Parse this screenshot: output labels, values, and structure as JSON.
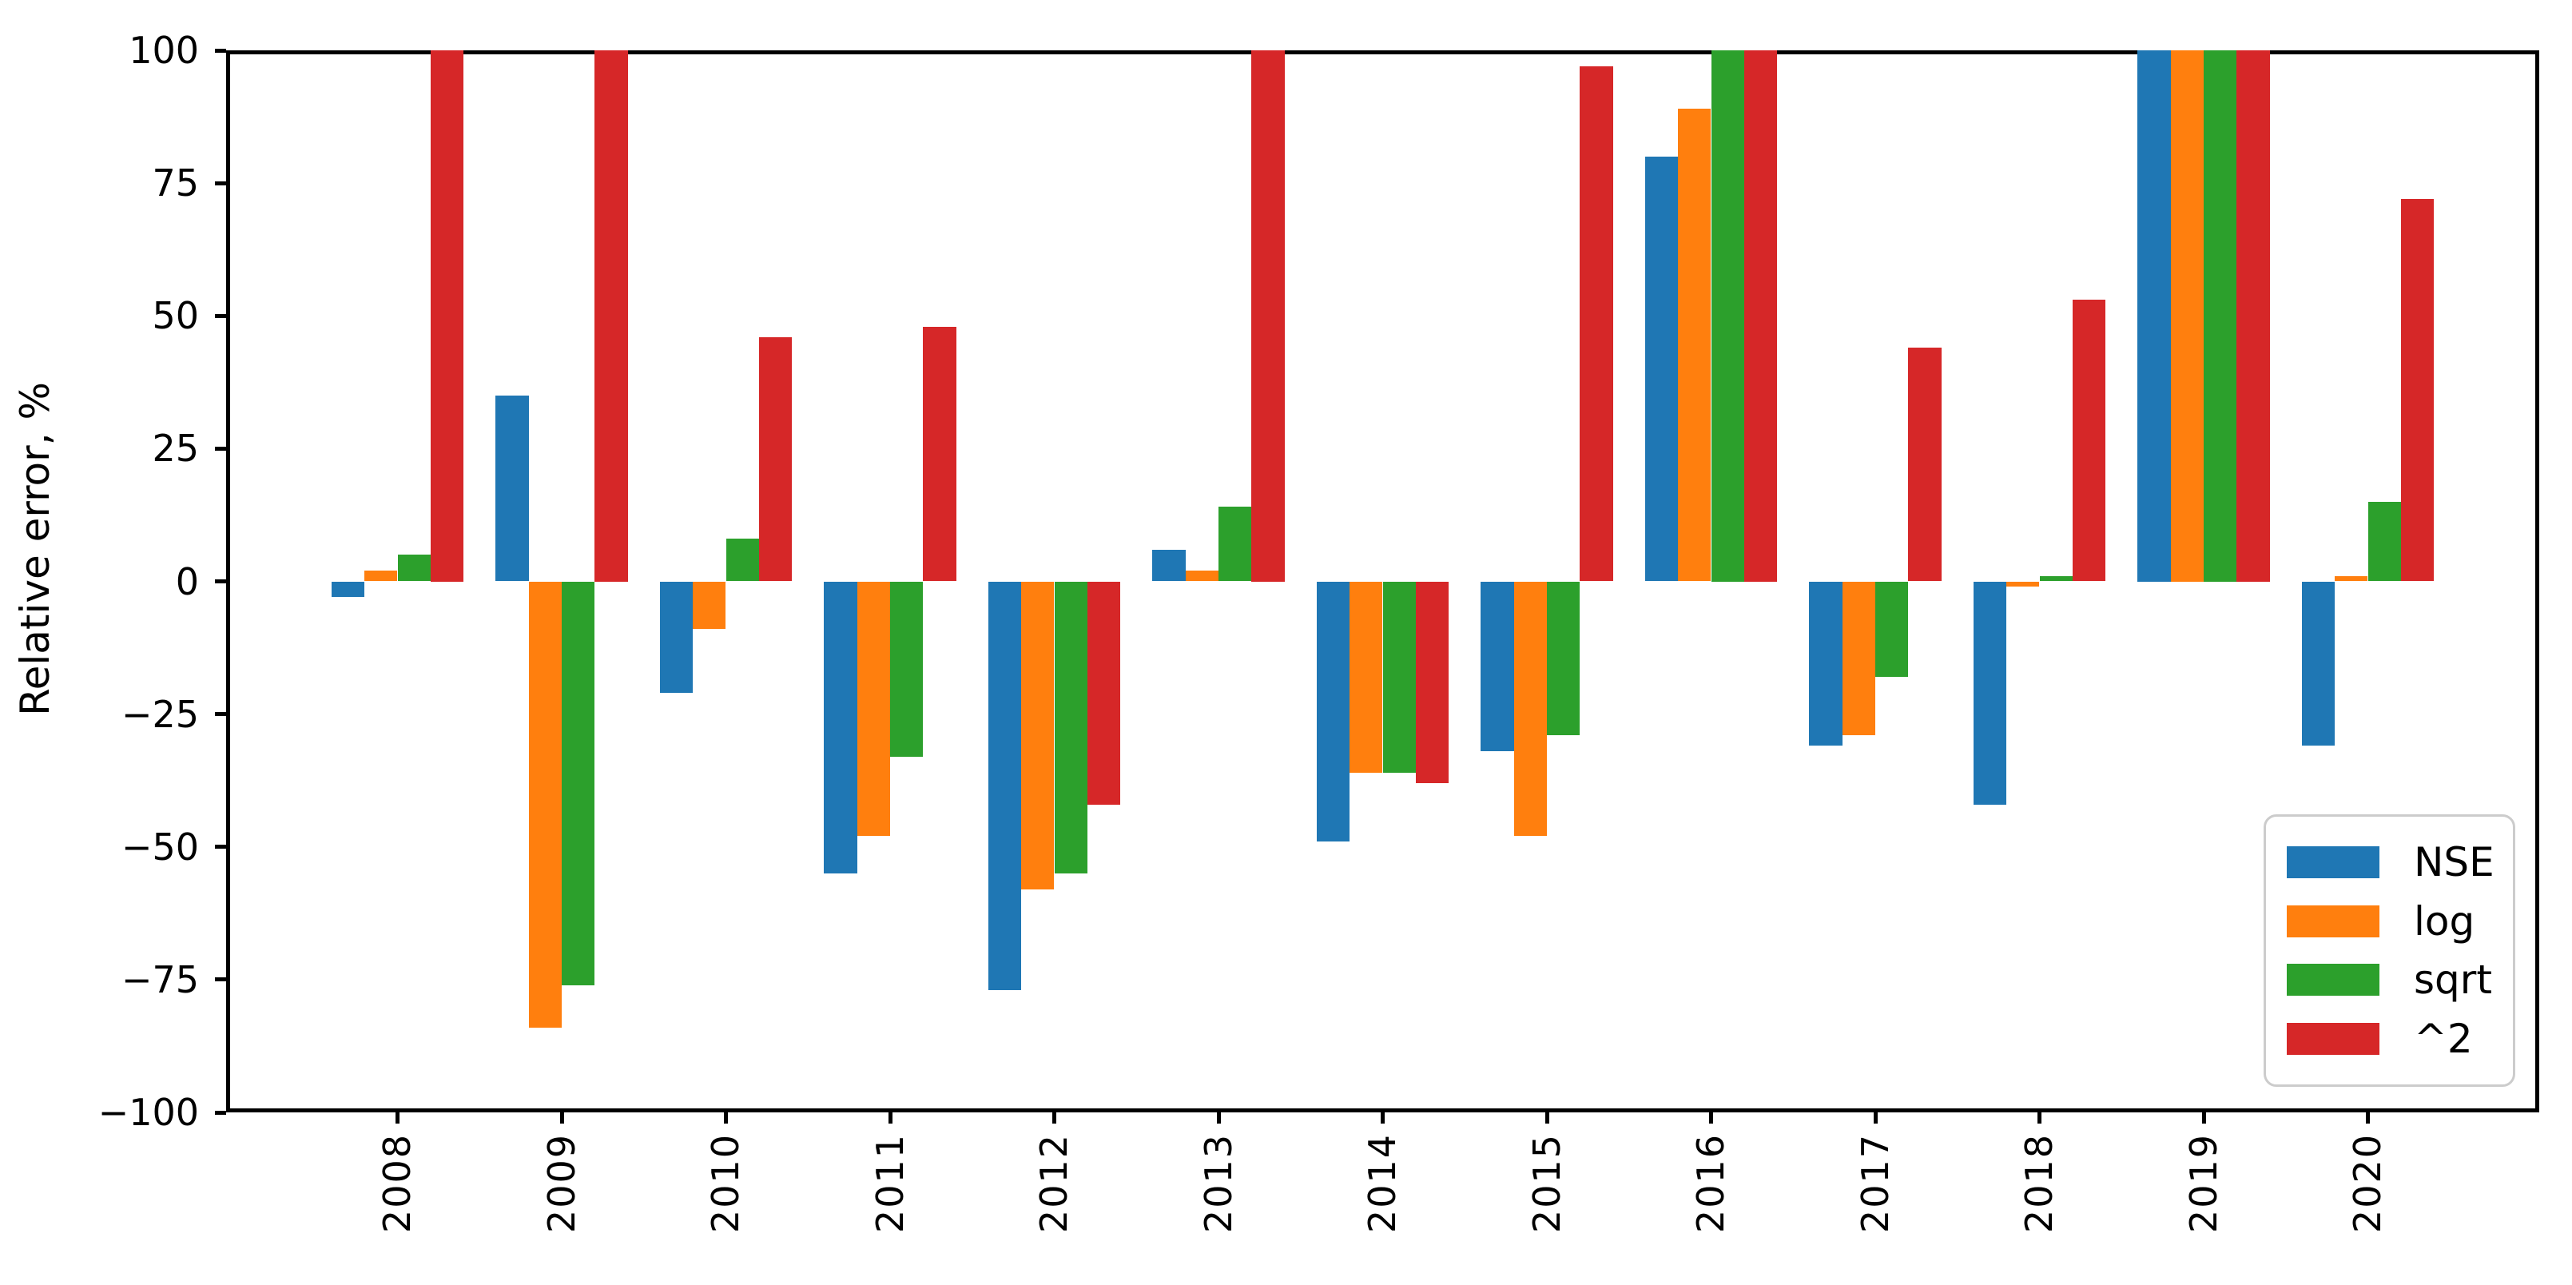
{
  "figure": {
    "background": "#ffffff",
    "axis_color": "#000000"
  },
  "chart_data": {
    "type": "bar",
    "title": "",
    "xlabel": "",
    "ylabel": "Relative error, %",
    "ylim": [
      -100,
      100
    ],
    "yticks": [
      100,
      75,
      50,
      25,
      0,
      -25,
      -50,
      -75,
      -100
    ],
    "ytick_labels": [
      "100",
      "75",
      "50",
      "25",
      "0",
      "−25",
      "−50",
      "−75",
      "−100"
    ],
    "x_tick_rotation": 90,
    "grid": false,
    "categories": [
      "2008",
      "2009",
      "2010",
      "2011",
      "2012",
      "2013",
      "2014",
      "2015",
      "2016",
      "2017",
      "2018",
      "2019",
      "2020"
    ],
    "series": [
      {
        "name": "NSE",
        "color": "#1f77b4",
        "values": [
          -3,
          35,
          -21,
          -55,
          -77,
          6,
          -49,
          -32,
          80,
          -31,
          -42,
          100,
          -31
        ]
      },
      {
        "name": "log",
        "color": "#ff7f0e",
        "values": [
          2,
          -84,
          -9,
          -48,
          -58,
          2,
          -36,
          -48,
          89,
          -29,
          -1,
          100,
          1
        ]
      },
      {
        "name": "sqrt",
        "color": "#2ca02c",
        "values": [
          5,
          -76,
          8,
          -33,
          -55,
          14,
          -36,
          -29,
          100,
          -18,
          1,
          100,
          15
        ]
      },
      {
        "name": "^2",
        "color": "#d62728",
        "values": [
          100,
          100,
          46,
          48,
          -42,
          100,
          -38,
          97,
          100,
          44,
          53,
          100,
          72
        ]
      }
    ],
    "clipped_bars": [
      "2008:^2",
      "2009:^2",
      "2013:^2",
      "2016:sqrt",
      "2016:^2",
      "2019:NSE",
      "2019:log",
      "2019:sqrt",
      "2019:^2"
    ],
    "clipped_note": "values listed as 100 reach the top axis limit (bar clipped at ylim)",
    "legend": {
      "position": "lower right",
      "labels": [
        "NSE",
        "log",
        "sqrt",
        "^2"
      ]
    }
  }
}
